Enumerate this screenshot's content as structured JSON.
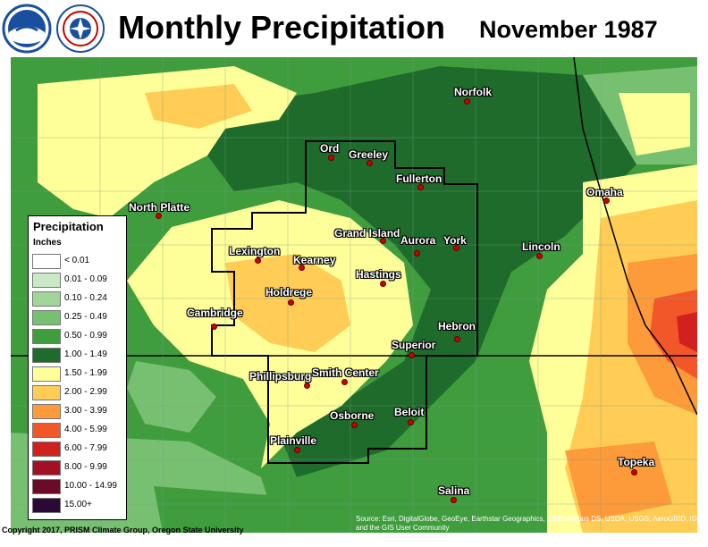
{
  "title": "Monthly Precipitation",
  "date": "November 1987",
  "logos": [
    {
      "name": "NOAA",
      "color": "#1a4fa0"
    },
    {
      "name": "National Weather Service",
      "color": "#1a4fa0"
    }
  ],
  "legend": {
    "title": "Precipitation",
    "unit": "Inches",
    "items": [
      {
        "label": "< 0.01",
        "color": "#ffffff"
      },
      {
        "label": "0.01 - 0.09",
        "color": "#c9e8c4"
      },
      {
        "label": "0.10 - 0.24",
        "color": "#a2d59a"
      },
      {
        "label": "0.25 - 0.49",
        "color": "#78c071"
      },
      {
        "label": "0.50 - 0.99",
        "color": "#3f9d3e"
      },
      {
        "label": "1.00 - 1.49",
        "color": "#1e6b2c"
      },
      {
        "label": "1.50 - 1.99",
        "color": "#ffff99"
      },
      {
        "label": "2.00 - 2.99",
        "color": "#ffcc55"
      },
      {
        "label": "3.00 - 3.99",
        "color": "#fd9a3a"
      },
      {
        "label": "4.00 - 5.99",
        "color": "#f2572a"
      },
      {
        "label": "6.00 - 7.99",
        "color": "#d0211f"
      },
      {
        "label": "8.00 - 9.99",
        "color": "#a30f23"
      },
      {
        "label": "10.00 - 14.99",
        "color": "#6b0b29"
      },
      {
        "label": "15.00+",
        "color": "#2a0a34"
      }
    ]
  },
  "cities": [
    {
      "name": "Norfolk"
    },
    {
      "name": "Ord"
    },
    {
      "name": "Greeley"
    },
    {
      "name": "Fullerton"
    },
    {
      "name": "Omaha"
    },
    {
      "name": "North Platte"
    },
    {
      "name": "Grand Island"
    },
    {
      "name": "Aurora"
    },
    {
      "name": "York"
    },
    {
      "name": "Lincoln"
    },
    {
      "name": "Lexington"
    },
    {
      "name": "Kearney"
    },
    {
      "name": "Hastings"
    },
    {
      "name": "Holdrege"
    },
    {
      "name": "Cambridge"
    },
    {
      "name": "Hebron"
    },
    {
      "name": "Superior"
    },
    {
      "name": "Phillipsburg"
    },
    {
      "name": "Smith Center"
    },
    {
      "name": "Beloit"
    },
    {
      "name": "Osborne"
    },
    {
      "name": "Plainville"
    },
    {
      "name": "Topeka"
    },
    {
      "name": "Salina"
    }
  ],
  "copyright": "Copyright 2017, PRISM Climate Group, Oregon State University",
  "source": "Source: Esri, DigitalGlobe, GeoEye, Earthstar Geographics, CNES/Airbus DS, USDA, USGS, AeroGRID, IGN, and the GIS User Community"
}
